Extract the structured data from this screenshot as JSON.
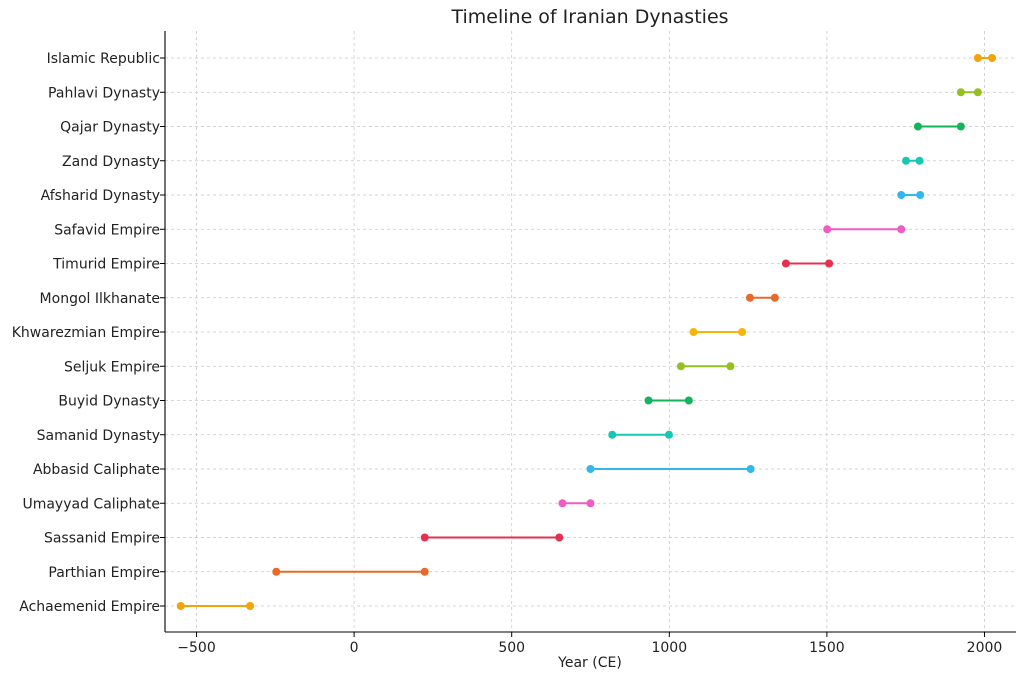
{
  "chart_data": {
    "type": "timeline",
    "title": "Timeline of Iranian Dynasties",
    "xlabel": "Year (CE)",
    "ylabel": "",
    "xlim": [
      -600,
      2100
    ],
    "xticks": [
      -500,
      0,
      500,
      1000,
      1500,
      2000
    ],
    "grid": true,
    "series": [
      {
        "label": "Achaemenid Empire",
        "start": -550,
        "end": -330,
        "color": "#f5a30a"
      },
      {
        "label": "Parthian Empire",
        "start": -247,
        "end": 224,
        "color": "#e8692a"
      },
      {
        "label": "Sassanid Empire",
        "start": 224,
        "end": 651,
        "color": "#e5304f"
      },
      {
        "label": "Umayyad Caliphate",
        "start": 661,
        "end": 750,
        "color": "#f05cc4"
      },
      {
        "label": "Abbasid Caliphate",
        "start": 750,
        "end": 1258,
        "color": "#34b6ef"
      },
      {
        "label": "Samanid Dynasty",
        "start": 819,
        "end": 999,
        "color": "#16c8b4"
      },
      {
        "label": "Buyid Dynasty",
        "start": 934,
        "end": 1062,
        "color": "#12b55a"
      },
      {
        "label": "Seljuk Empire",
        "start": 1037,
        "end": 1194,
        "color": "#94c11f"
      },
      {
        "label": "Khwarezmian Empire",
        "start": 1077,
        "end": 1231,
        "color": "#f5b50a"
      },
      {
        "label": "Mongol Ilkhanate",
        "start": 1256,
        "end": 1335,
        "color": "#e8692a"
      },
      {
        "label": "Timurid Empire",
        "start": 1370,
        "end": 1507,
        "color": "#e5304f"
      },
      {
        "label": "Safavid Empire",
        "start": 1501,
        "end": 1736,
        "color": "#f05cc4"
      },
      {
        "label": "Afsharid Dynasty",
        "start": 1736,
        "end": 1796,
        "color": "#34b6ef"
      },
      {
        "label": "Zand Dynasty",
        "start": 1751,
        "end": 1794,
        "color": "#16c8b4"
      },
      {
        "label": "Qajar Dynasty",
        "start": 1789,
        "end": 1925,
        "color": "#12b55a"
      },
      {
        "label": "Pahlavi Dynasty",
        "start": 1925,
        "end": 1979,
        "color": "#94c11f"
      },
      {
        "label": "Islamic Republic",
        "start": 1979,
        "end": 2024,
        "color": "#f5a30a"
      }
    ]
  }
}
